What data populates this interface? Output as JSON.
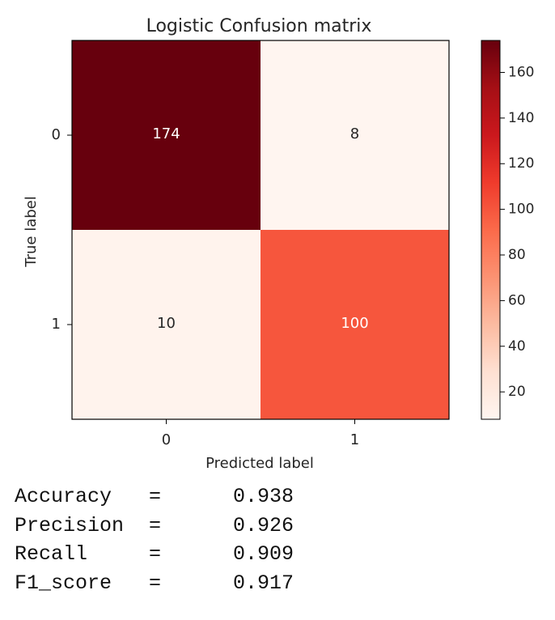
{
  "chart_data": {
    "type": "heatmap",
    "title": "Logistic Confusion matrix",
    "xlabel": "Predicted label",
    "ylabel": "True label",
    "x_categories": [
      "0",
      "1"
    ],
    "y_categories": [
      "0",
      "1"
    ],
    "matrix": [
      [
        174,
        8
      ],
      [
        10,
        100
      ]
    ],
    "colormap": "Reds",
    "colorbar": {
      "range": [
        8,
        174
      ],
      "ticks": [
        20,
        40,
        60,
        80,
        100,
        120,
        140,
        160
      ]
    }
  },
  "metrics": [
    {
      "name": "Accuracy",
      "eq": "=",
      "value": "0.938"
    },
    {
      "name": "Precision",
      "eq": "=",
      "value": "0.926"
    },
    {
      "name": "Recall",
      "eq": "=",
      "value": "0.909"
    },
    {
      "name": "F1_score",
      "eq": "=",
      "value": "0.917"
    }
  ]
}
